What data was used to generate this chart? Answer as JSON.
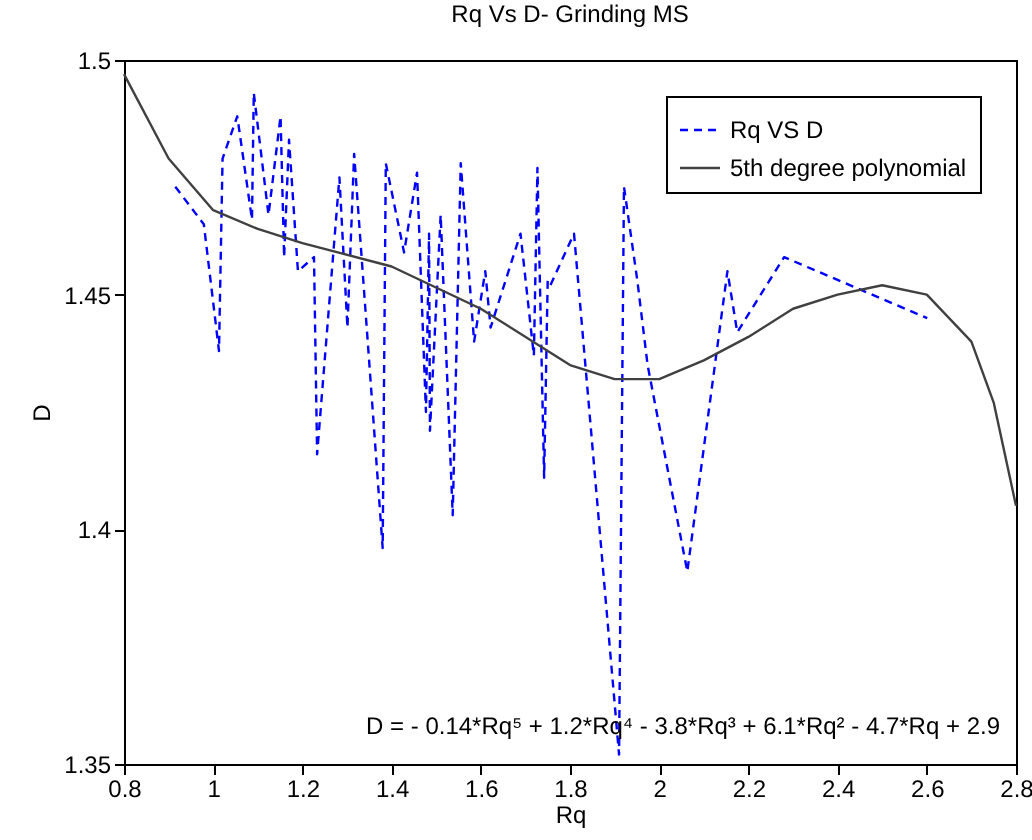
{
  "chart_data": {
    "type": "line",
    "title": "Rq Vs D- Grinding MS",
    "xlabel": "Rq",
    "ylabel": "D",
    "xlim": [
      0.8,
      2.8
    ],
    "xticks": [
      0.8,
      1,
      1.2,
      1.4,
      1.6,
      1.8,
      2,
      2.2,
      2.4,
      2.6,
      2.8
    ],
    "ylim": [
      1.35,
      1.5
    ],
    "yticks": [
      1.35,
      1.4,
      1.45,
      1.5
    ],
    "grid": false,
    "legend": "top right",
    "annotations": [
      "D = - 0.14*Rq⁵ + 1.2*Rq⁴ - 3.8*Rq³ + 6.1*Rq² - 4.7*Rq + 2.9"
    ],
    "series": [
      {
        "name": "Rq VS D",
        "color": "#0000ff",
        "line_style": "dashed",
        "x": [
          0.915,
          0.979,
          1.013,
          1.021,
          1.054,
          1.087,
          1.091,
          1.124,
          1.151,
          1.159,
          1.17,
          1.19,
          1.226,
          1.233,
          1.283,
          1.301,
          1.316,
          1.38,
          1.387,
          1.428,
          1.457,
          1.477,
          1.484,
          1.486,
          1.51,
          1.537,
          1.555,
          1.585,
          1.61,
          1.622,
          1.689,
          1.719,
          1.727,
          1.742,
          1.75,
          1.756,
          1.809,
          1.91,
          1.921,
          1.951,
          1.974,
          2.063,
          2.153,
          2.175,
          2.28,
          2.601
        ],
        "values": [
          1.473,
          1.465,
          1.438,
          1.479,
          1.488,
          1.466,
          1.493,
          1.467,
          1.488,
          1.458,
          1.483,
          1.455,
          1.458,
          1.416,
          1.475,
          1.443,
          1.48,
          1.396,
          1.478,
          1.459,
          1.476,
          1.425,
          1.463,
          1.421,
          1.467,
          1.403,
          1.478,
          1.44,
          1.455,
          1.443,
          1.463,
          1.437,
          1.477,
          1.411,
          1.453,
          1.452,
          1.463,
          1.352,
          1.473,
          1.453,
          1.435,
          1.391,
          1.455,
          1.442,
          1.458,
          1.445
        ]
      },
      {
        "name": "5th degree polynomial",
        "color": "#404040",
        "line_style": "solid",
        "x": [
          0.8,
          0.9,
          1.0,
          1.1,
          1.2,
          1.4,
          1.6,
          1.8,
          1.9,
          2.0,
          2.1,
          2.2,
          2.3,
          2.4,
          2.5,
          2.6,
          2.7,
          2.75,
          2.8
        ],
        "values": [
          1.497,
          1.479,
          1.468,
          1.464,
          1.461,
          1.456,
          1.447,
          1.435,
          1.432,
          1.432,
          1.436,
          1.441,
          1.447,
          1.45,
          1.452,
          1.45,
          1.44,
          1.427,
          1.405
        ]
      }
    ]
  }
}
